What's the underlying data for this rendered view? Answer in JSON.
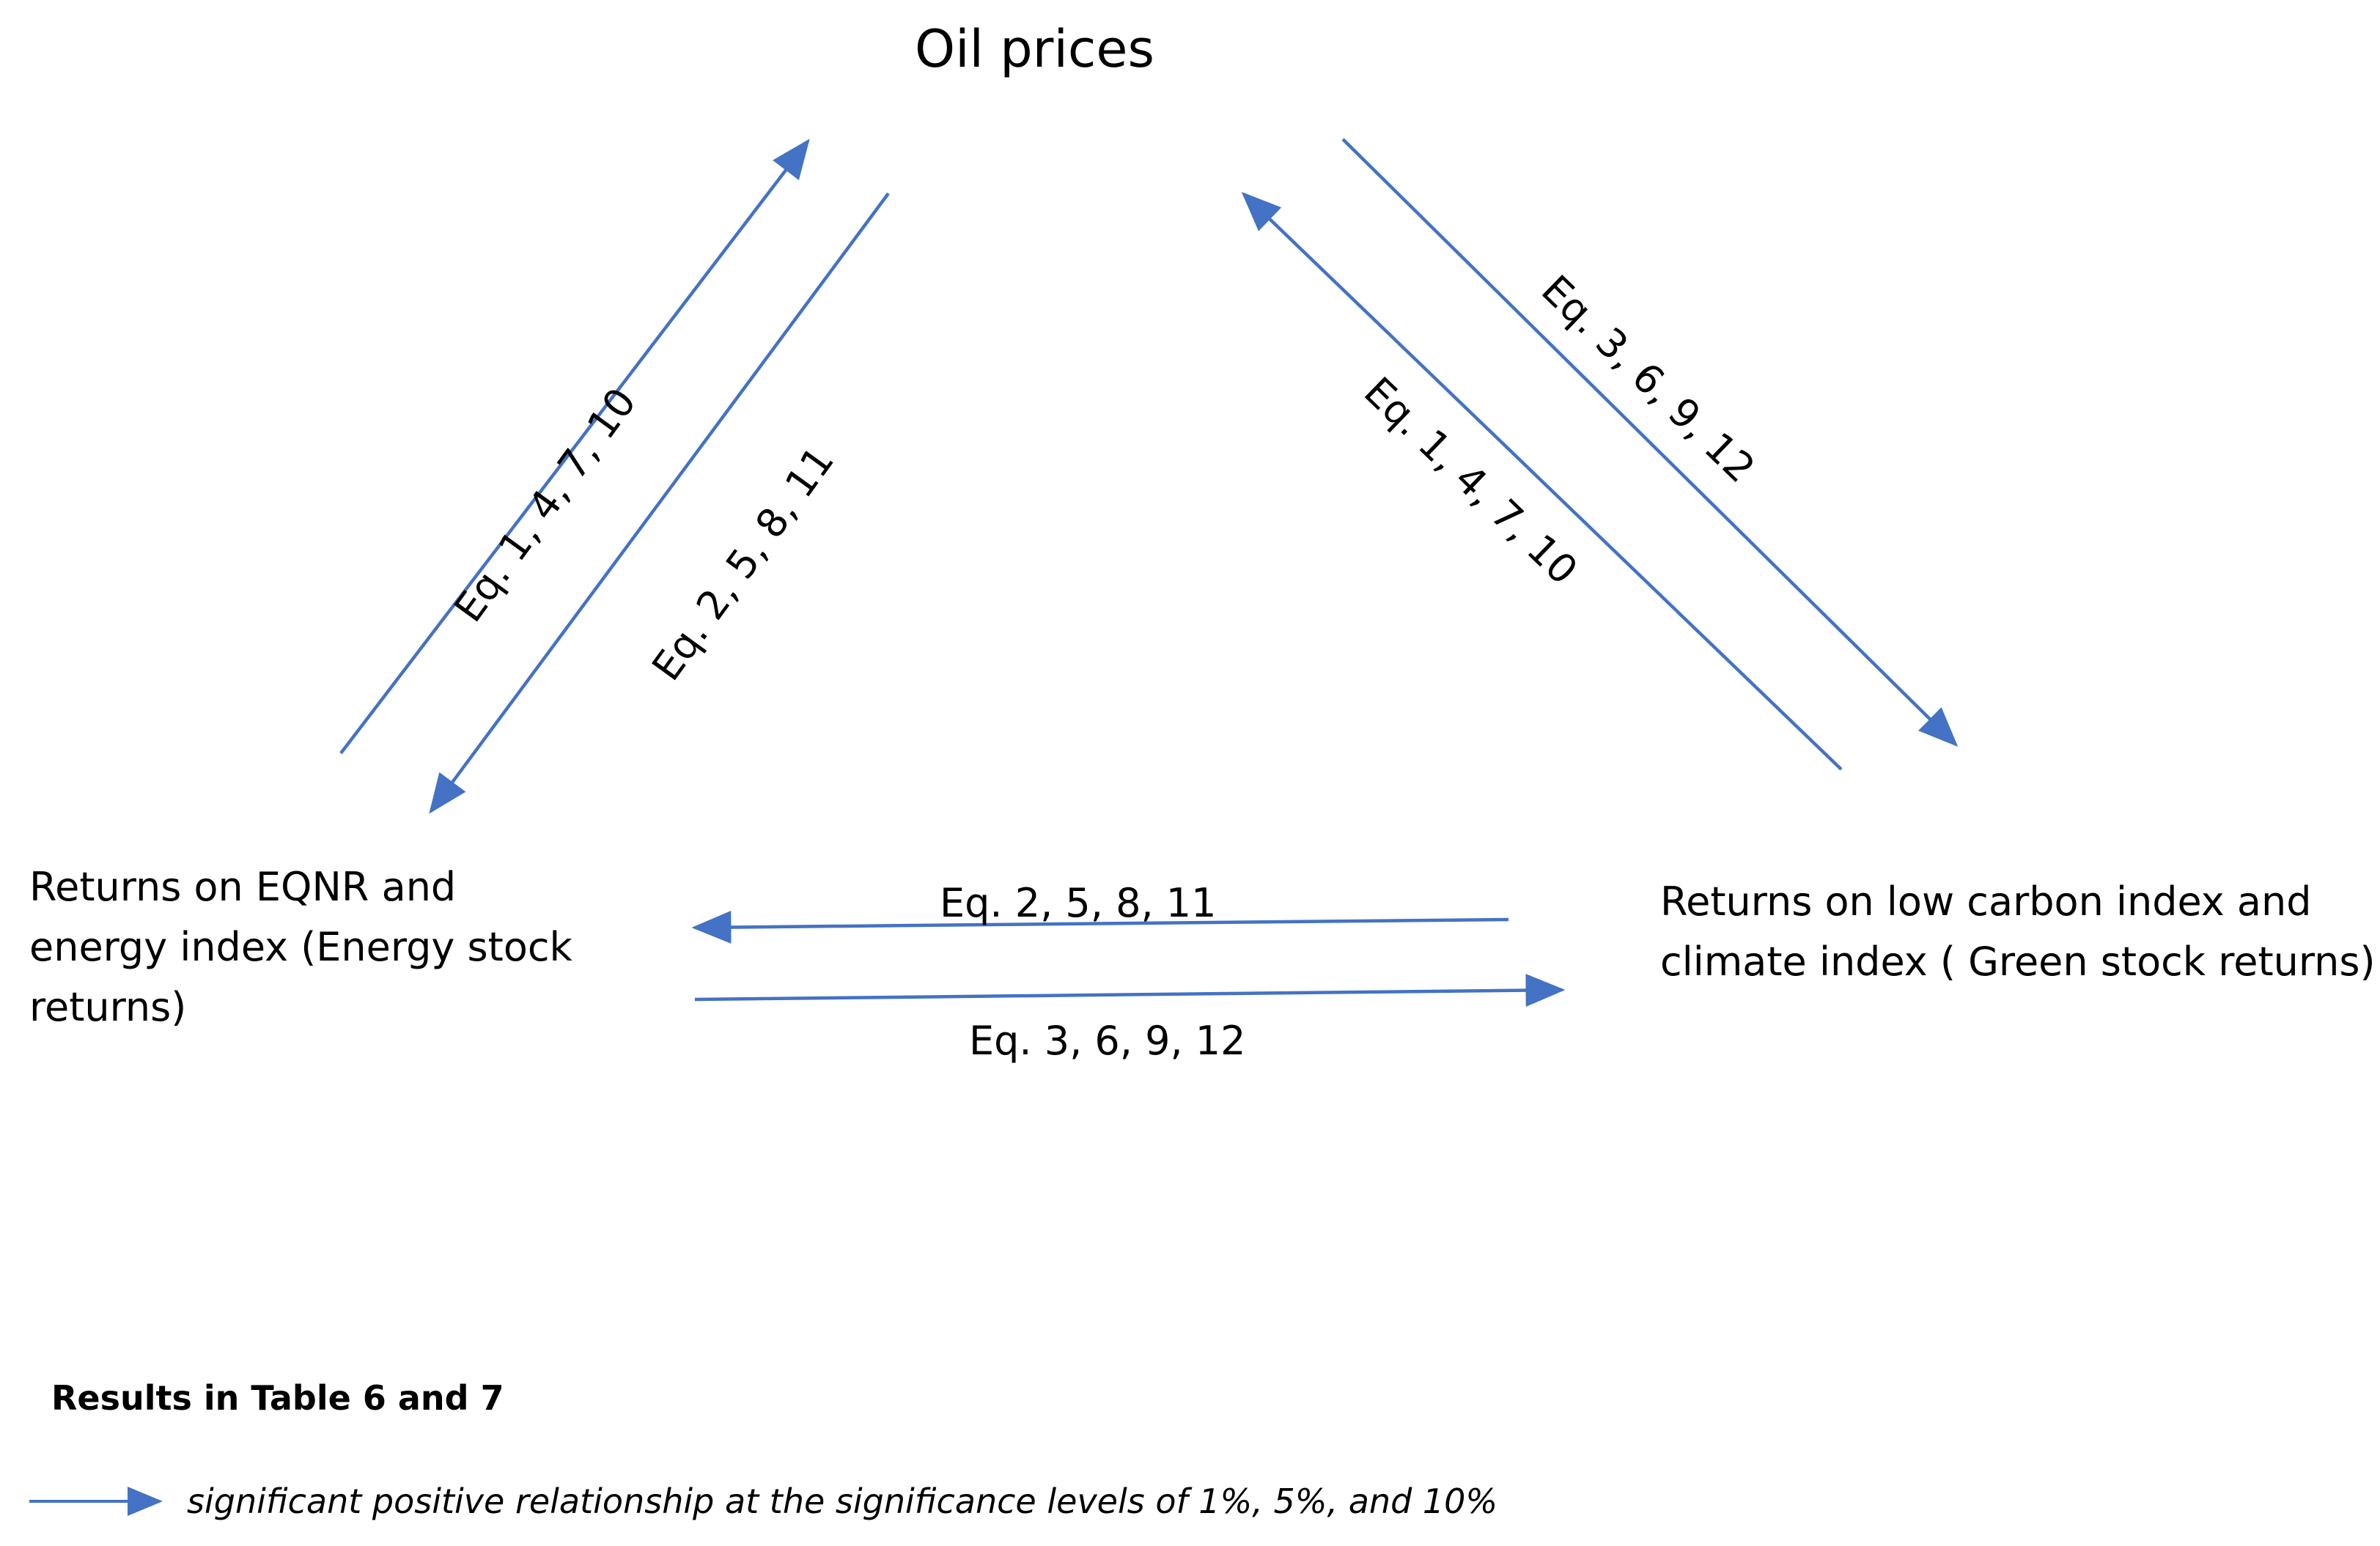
{
  "nodes": {
    "oil": "Oil prices",
    "energy": "Returns on EQNR and\nenergy index (Energy stock\nreturns)",
    "green": "Returns on low carbon index and\nclimate index ( Green stock returns)"
  },
  "edges": [
    {
      "from": "energy",
      "to": "oil",
      "label": "Eq. 1, 4, 7, 10"
    },
    {
      "from": "oil",
      "to": "energy",
      "label": "Eq. 2, 5, 8, 11"
    },
    {
      "from": "green",
      "to": "oil",
      "label": "Eq. 1, 4, 7, 10"
    },
    {
      "from": "oil",
      "to": "green",
      "label": "Eq. 3, 6, 9, 12"
    },
    {
      "from": "green",
      "to": "energy",
      "label": "Eq. 2, 5, 8, 11"
    },
    {
      "from": "energy",
      "to": "green",
      "label": "Eq. 3, 6, 9, 12"
    }
  ],
  "legend": {
    "title": "Results in Table 6 and 7",
    "text": "significant positive relationship at  the significance levels of 1%, 5%, and 10%"
  },
  "colors": {
    "arrow": "#4472C4",
    "text": "#000000"
  }
}
